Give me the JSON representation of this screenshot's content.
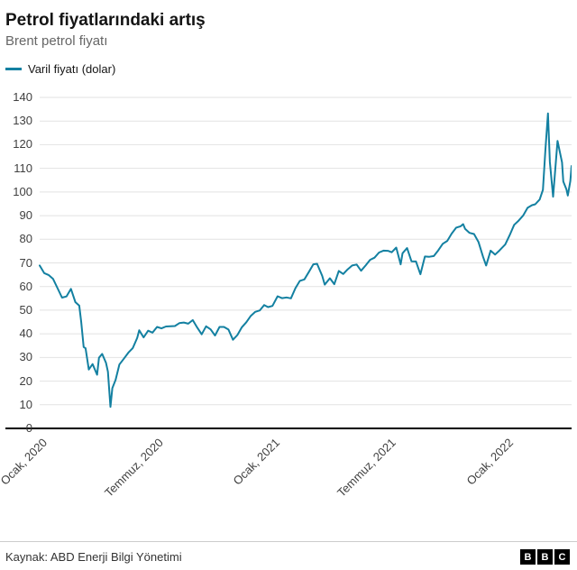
{
  "header": {
    "title": "Petrol fiyatlarındaki artış",
    "subtitle": "Brent petrol fiyatı"
  },
  "legend": {
    "label": "Varil fiyatı (dolar)",
    "color": "#1380A1"
  },
  "footer": {
    "source": "Kaynak: ABD Enerji Bilgi Yönetimi",
    "logo_letters": [
      "B",
      "B",
      "C"
    ]
  },
  "chart_data": {
    "type": "line",
    "title": "Petrol fiyatlarındaki artış",
    "subtitle": "Brent petrol fiyatı",
    "xlabel": "",
    "ylabel": "",
    "ylim": [
      0,
      140
    ],
    "yticks": [
      0,
      10,
      20,
      30,
      40,
      50,
      60,
      70,
      80,
      90,
      100,
      110,
      120,
      130,
      140
    ],
    "grid": "horizontal",
    "legend_position": "top-left",
    "xticks": [
      {
        "date": "2020-01-01",
        "label": "Ocak, 2020"
      },
      {
        "date": "2020-07-01",
        "label": "Temmuz, 2020"
      },
      {
        "date": "2021-01-01",
        "label": "Ocak, 2021"
      },
      {
        "date": "2021-07-01",
        "label": "Temmuz, 2021"
      },
      {
        "date": "2022-01-01",
        "label": "Ocak, 2022"
      }
    ],
    "series": [
      {
        "name": "Varil fiyatı (dolar)",
        "color": "#1380A1",
        "points": [
          [
            "2020-01-01",
            68.9
          ],
          [
            "2020-01-08",
            65.7
          ],
          [
            "2020-01-15",
            64.9
          ],
          [
            "2020-01-22",
            63.2
          ],
          [
            "2020-01-29",
            59.3
          ],
          [
            "2020-02-05",
            55.3
          ],
          [
            "2020-02-12",
            55.8
          ],
          [
            "2020-02-19",
            59.0
          ],
          [
            "2020-02-26",
            53.4
          ],
          [
            "2020-03-03",
            51.9
          ],
          [
            "2020-03-06",
            45.3
          ],
          [
            "2020-03-10",
            34.4
          ],
          [
            "2020-03-13",
            33.9
          ],
          [
            "2020-03-18",
            24.9
          ],
          [
            "2020-03-24",
            27.2
          ],
          [
            "2020-03-31",
            22.7
          ],
          [
            "2020-04-03",
            29.9
          ],
          [
            "2020-04-08",
            31.5
          ],
          [
            "2020-04-14",
            27.7
          ],
          [
            "2020-04-17",
            24.0
          ],
          [
            "2020-04-21",
            9.1
          ],
          [
            "2020-04-24",
            17.0
          ],
          [
            "2020-04-29",
            20.5
          ],
          [
            "2020-05-05",
            27.0
          ],
          [
            "2020-05-12",
            29.5
          ],
          [
            "2020-05-19",
            32.0
          ],
          [
            "2020-05-26",
            34.0
          ],
          [
            "2020-06-02",
            38.3
          ],
          [
            "2020-06-05",
            41.5
          ],
          [
            "2020-06-12",
            38.5
          ],
          [
            "2020-06-19",
            41.3
          ],
          [
            "2020-06-26",
            40.5
          ],
          [
            "2020-07-03",
            42.9
          ],
          [
            "2020-07-10",
            42.3
          ],
          [
            "2020-07-17",
            43.1
          ],
          [
            "2020-07-24",
            43.2
          ],
          [
            "2020-07-31",
            43.3
          ],
          [
            "2020-08-07",
            44.5
          ],
          [
            "2020-08-14",
            44.8
          ],
          [
            "2020-08-21",
            44.3
          ],
          [
            "2020-08-28",
            45.8
          ],
          [
            "2020-09-04",
            42.7
          ],
          [
            "2020-09-11",
            39.8
          ],
          [
            "2020-09-18",
            43.2
          ],
          [
            "2020-09-25",
            41.9
          ],
          [
            "2020-10-02",
            39.3
          ],
          [
            "2020-10-09",
            42.9
          ],
          [
            "2020-10-16",
            42.9
          ],
          [
            "2020-10-23",
            41.8
          ],
          [
            "2020-10-30",
            37.5
          ],
          [
            "2020-11-06",
            39.5
          ],
          [
            "2020-11-13",
            42.8
          ],
          [
            "2020-11-20",
            44.9
          ],
          [
            "2020-11-27",
            47.6
          ],
          [
            "2020-12-04",
            49.3
          ],
          [
            "2020-12-11",
            49.9
          ],
          [
            "2020-12-18",
            52.2
          ],
          [
            "2020-12-24",
            51.3
          ],
          [
            "2020-12-31",
            51.8
          ],
          [
            "2021-01-08",
            55.9
          ],
          [
            "2021-01-15",
            55.1
          ],
          [
            "2021-01-22",
            55.4
          ],
          [
            "2021-01-29",
            55.0
          ],
          [
            "2021-02-05",
            59.3
          ],
          [
            "2021-02-12",
            62.4
          ],
          [
            "2021-02-19",
            63.0
          ],
          [
            "2021-02-26",
            66.1
          ],
          [
            "2021-03-05",
            69.4
          ],
          [
            "2021-03-11",
            69.6
          ],
          [
            "2021-03-19",
            64.5
          ],
          [
            "2021-03-23",
            60.8
          ],
          [
            "2021-03-31",
            63.5
          ],
          [
            "2021-04-07",
            61.0
          ],
          [
            "2021-04-14",
            66.6
          ],
          [
            "2021-04-21",
            65.3
          ],
          [
            "2021-04-28",
            67.3
          ],
          [
            "2021-05-05",
            68.9
          ],
          [
            "2021-05-12",
            69.3
          ],
          [
            "2021-05-19",
            66.7
          ],
          [
            "2021-05-26",
            68.9
          ],
          [
            "2021-06-02",
            71.3
          ],
          [
            "2021-06-09",
            72.2
          ],
          [
            "2021-06-16",
            74.4
          ],
          [
            "2021-06-23",
            75.2
          ],
          [
            "2021-06-30",
            75.1
          ],
          [
            "2021-07-06",
            74.5
          ],
          [
            "2021-07-13",
            76.5
          ],
          [
            "2021-07-20",
            69.4
          ],
          [
            "2021-07-23",
            74.1
          ],
          [
            "2021-07-30",
            76.3
          ],
          [
            "2021-08-06",
            70.7
          ],
          [
            "2021-08-13",
            70.6
          ],
          [
            "2021-08-20",
            65.2
          ],
          [
            "2021-08-27",
            72.7
          ],
          [
            "2021-09-03",
            72.6
          ],
          [
            "2021-09-10",
            72.9
          ],
          [
            "2021-09-17",
            75.3
          ],
          [
            "2021-09-24",
            78.1
          ],
          [
            "2021-10-01",
            79.3
          ],
          [
            "2021-10-08",
            82.4
          ],
          [
            "2021-10-15",
            84.9
          ],
          [
            "2021-10-22",
            85.5
          ],
          [
            "2021-10-26",
            86.4
          ],
          [
            "2021-10-29",
            84.4
          ],
          [
            "2021-11-05",
            82.7
          ],
          [
            "2021-11-12",
            82.2
          ],
          [
            "2021-11-19",
            78.9
          ],
          [
            "2021-11-26",
            72.7
          ],
          [
            "2021-12-01",
            68.9
          ],
          [
            "2021-12-08",
            75.2
          ],
          [
            "2021-12-15",
            73.5
          ],
          [
            "2021-12-22",
            75.3
          ],
          [
            "2021-12-31",
            77.8
          ],
          [
            "2022-01-07",
            81.8
          ],
          [
            "2022-01-14",
            86.1
          ],
          [
            "2022-01-21",
            87.9
          ],
          [
            "2022-01-28",
            90.0
          ],
          [
            "2022-02-04",
            93.3
          ],
          [
            "2022-02-11",
            94.4
          ],
          [
            "2022-02-16",
            94.8
          ],
          [
            "2022-02-23",
            96.8
          ],
          [
            "2022-02-28",
            100.9
          ],
          [
            "2022-03-04",
            118.1
          ],
          [
            "2022-03-08",
            133.2
          ],
          [
            "2022-03-11",
            112.7
          ],
          [
            "2022-03-16",
            98.0
          ],
          [
            "2022-03-23",
            121.6
          ],
          [
            "2022-03-30",
            112.5
          ],
          [
            "2022-04-01",
            104.4
          ],
          [
            "2022-04-06",
            101.1
          ],
          [
            "2022-04-08",
            98.5
          ],
          [
            "2022-04-12",
            104.6
          ],
          [
            "2022-04-14",
            111.0
          ]
        ]
      }
    ]
  }
}
